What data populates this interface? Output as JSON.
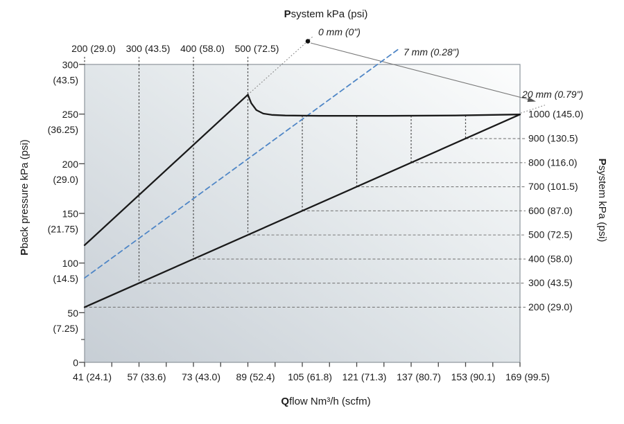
{
  "chart_data": {
    "type": "line",
    "titles": {
      "top": {
        "bold": "P",
        "rest": "system kPa (psi)"
      },
      "left": {
        "bold": "P",
        "rest": "back pressure kPa (psi)"
      },
      "right": {
        "bold": "P",
        "rest": "system kPa (psi)"
      },
      "bottom": {
        "bold": "Q",
        "rest": "flow Nm³/h (scfm)"
      }
    },
    "left_axis": {
      "range": [
        0,
        300
      ],
      "ticks": [
        {
          "p": 300,
          "kpa": "300",
          "psi": "(43.5)"
        },
        {
          "p": 250,
          "kpa": "250",
          "psi": "(36.25)"
        },
        {
          "p": 200,
          "kpa": "200",
          "psi": "(29.0)"
        },
        {
          "p": 150,
          "kpa": "150",
          "psi": "(21.75)"
        },
        {
          "p": 100,
          "kpa": "100",
          "psi": "(14.5)"
        },
        {
          "p": 50,
          "kpa": "50",
          "psi": "(7.25)"
        },
        {
          "p": 0,
          "kpa": "0",
          "psi": ""
        }
      ],
      "minor_tick_p": 23
    },
    "bottom_axis": {
      "range": [
        41,
        169
      ],
      "minor_step": 8,
      "ticks": [
        {
          "q": 41,
          "label": "41 (24.1)"
        },
        {
          "q": 57,
          "label": "57 (33.6)"
        },
        {
          "q": 73,
          "label": "73 (43.0)"
        },
        {
          "q": 89,
          "label": "89 (52.4)"
        },
        {
          "q": 105,
          "label": "105 (61.8)"
        },
        {
          "q": 121,
          "label": "121 (71.3)"
        },
        {
          "q": 137,
          "label": "137 (80.7)"
        },
        {
          "q": 153,
          "label": "153 (90.1)"
        },
        {
          "q": 169,
          "label": "169 (99.5)"
        }
      ]
    },
    "top_axis": {
      "ticks": [
        {
          "q": 41,
          "label": "200 (29.0)"
        },
        {
          "q": 57,
          "label": "300 (43.5)"
        },
        {
          "q": 73,
          "label": "400 (58.0)"
        },
        {
          "q": 89,
          "label": "500 (72.5)"
        }
      ]
    },
    "right_axis": {
      "ticks": [
        {
          "q": 169,
          "label": "1000 (145.0)",
          "leader": "dotted"
        },
        {
          "q": 153,
          "label": "900 (130.5)",
          "leader": "dashed"
        },
        {
          "q": 137,
          "label": "800 (116.0)",
          "leader": "dashed"
        },
        {
          "q": 121,
          "label": "700 (101.5)",
          "leader": "dashed"
        },
        {
          "q": 105,
          "label": "600 (87.0)",
          "leader": "dashed"
        },
        {
          "q": 89,
          "label": "500 (72.5)",
          "leader": "dashed"
        },
        {
          "q": 73,
          "label": "400 (58.0)",
          "leader": "dashed"
        },
        {
          "q": 57,
          "label": "300 (43.5)",
          "leader": "dashed"
        },
        {
          "q": 41,
          "label": "200 (29.0)",
          "leader": "dashed"
        }
      ]
    },
    "series": [
      {
        "name": "back-pressure-curve",
        "style": "solid",
        "color": "#1a1a1a",
        "points": [
          [
            41,
            118
          ],
          [
            89,
            269.5
          ],
          [
            90,
            261
          ],
          [
            91.5,
            254
          ],
          [
            93.5,
            250.5
          ],
          [
            96,
            249.2
          ],
          [
            100,
            248.6
          ],
          [
            110,
            248.2
          ],
          [
            130,
            248.2
          ],
          [
            150,
            248.6
          ],
          [
            169,
            249.6
          ]
        ]
      },
      {
        "name": "system-pressure-line",
        "style": "solid",
        "color": "#1a1a1a",
        "points": [
          [
            41,
            55.5
          ],
          [
            169,
            249.6
          ]
        ]
      },
      {
        "name": "orifice-7mm-line",
        "style": "dashed",
        "color": "#4f86c6",
        "points": [
          [
            41,
            85
          ],
          [
            133.5,
            316
          ]
        ]
      }
    ],
    "droplines": {
      "from_top_axis": [
        57,
        73,
        89
      ],
      "from_curve": [
        105,
        121,
        137,
        153
      ]
    },
    "annotations": [
      {
        "name": "orifice-0mm",
        "text": "0 mm (0\")"
      },
      {
        "name": "orifice-7mm",
        "text": "7 mm (0.28\")"
      },
      {
        "name": "orifice-20mm",
        "text": "20 mm (0.79\")"
      }
    ],
    "colors": {
      "curve": "#1a1a1a",
      "blue_dashed": "#4f86c6",
      "dropline": "#4d4d4d",
      "guide": "#7a7a7a",
      "dotted_leader": "#8a8a8a",
      "plot_border": "#8c949b",
      "bg_bottom_left": "#c7ced5",
      "bg_mid": "#e2e7ea",
      "bg_top_right": "#fcfdfd"
    }
  }
}
